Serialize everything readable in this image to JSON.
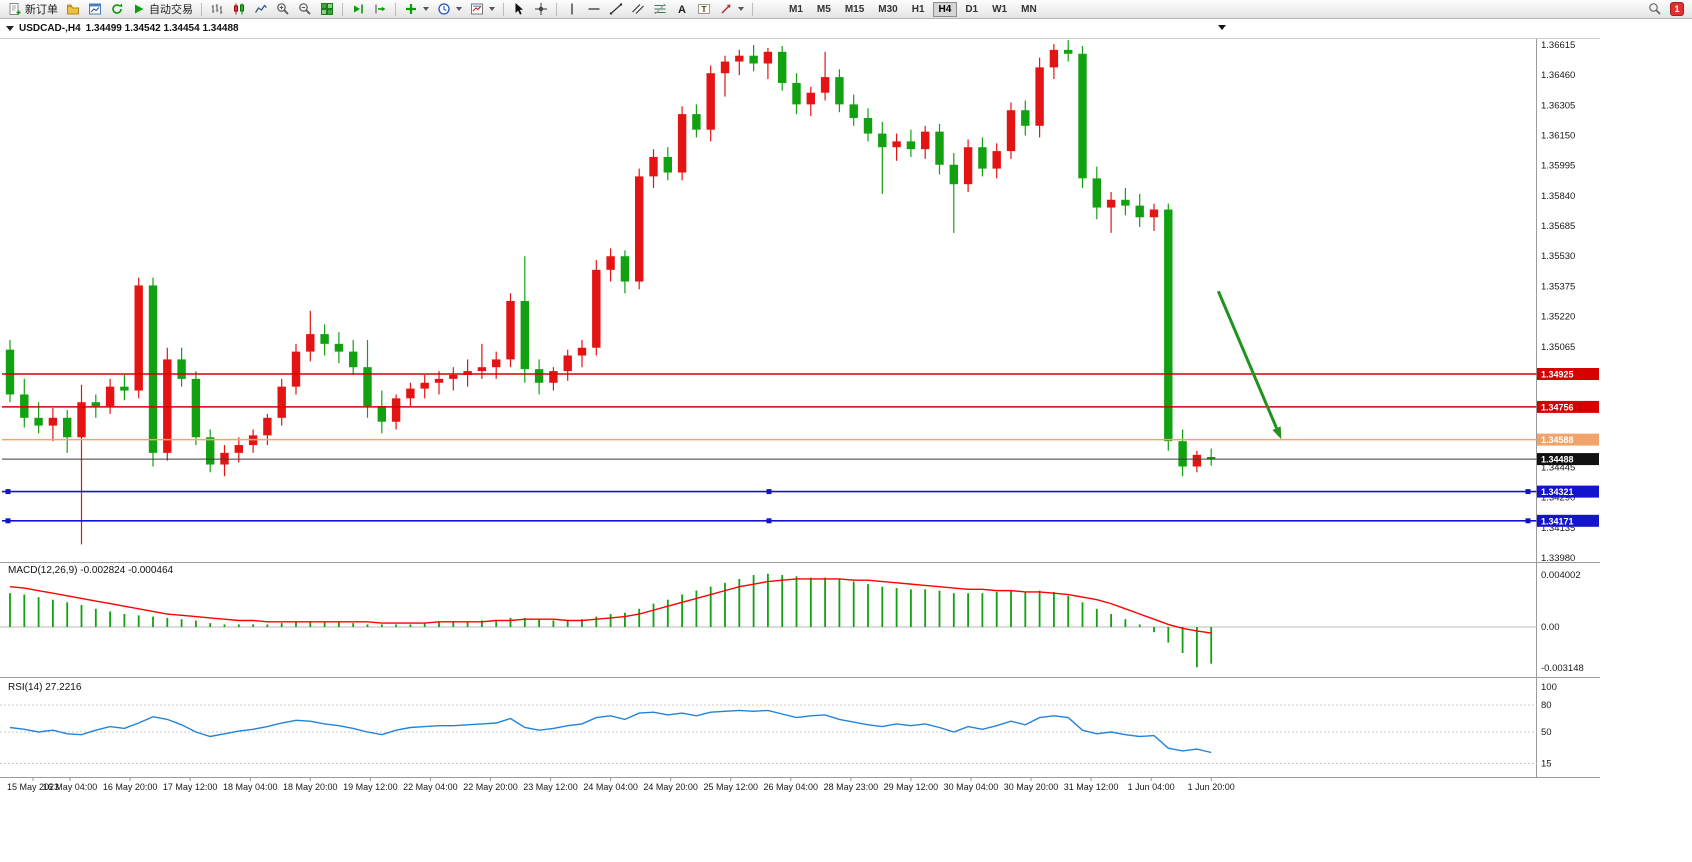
{
  "toolbar": {
    "new_order_label": "新订单",
    "autotrading_label": "自动交易",
    "timeframes": [
      "M1",
      "M5",
      "M15",
      "M30",
      "H1",
      "H4",
      "D1",
      "W1",
      "MN"
    ],
    "active_timeframe": "H4",
    "notification_badge": "1",
    "icon_names": [
      "new-order-icon",
      "profiles-icon",
      "chart-window-icon",
      "refresh-icon",
      "autotrading-icon",
      "bar-chart-icon",
      "candlestick-chart-icon",
      "line-chart-icon",
      "zoom-in-icon",
      "zoom-out-icon",
      "tile-windows-icon",
      "auto-scroll-icon",
      "chart-shift-icon",
      "indicators-icon",
      "periods-icon",
      "templates-icon",
      "cursor-icon",
      "crosshair-icon",
      "vertical-line-icon",
      "horizontal-line-icon",
      "trendline-icon",
      "channel-icon",
      "fibonacci-icon",
      "text-icon",
      "label-icon",
      "arrows-icon",
      "search-icon"
    ]
  },
  "chart_header": {
    "symbol_period": "USDCAD-,H4",
    "ohlc": "1.34499 1.34542 1.34454 1.34488"
  },
  "colors": {
    "bull": "#e41414",
    "bear": "#11a111",
    "macd_histogram": "#11a111",
    "macd_signal": "#ff0000",
    "rsi_line": "#2383d8",
    "grid": "#9b9b9b"
  },
  "chart_data": {
    "type": "candlestick",
    "symbol": "USDCAD",
    "period": "H4",
    "price_range": [
      1.3398,
      1.36615
    ],
    "price_axis_ticks": [
      "1.36615",
      "1.36460",
      "1.36305",
      "1.36150",
      "1.35995",
      "1.35840",
      "1.35685",
      "1.35530",
      "1.35375",
      "1.35220",
      "1.35065",
      "1.34910",
      "1.34755",
      "1.34600",
      "1.34445",
      "1.34290",
      "1.34135",
      "1.33980"
    ],
    "time_axis_labels": [
      "15 May 2023",
      "16 May 04:00",
      "16 May 20:00",
      "17 May 12:00",
      "18 May 04:00",
      "18 May 20:00",
      "19 May 12:00",
      "22 May 04:00",
      "22 May 20:00",
      "23 May 12:00",
      "24 May 04:00",
      "24 May 20:00",
      "25 May 12:00",
      "26 May 04:00",
      "28 May 23:00",
      "29 May 12:00",
      "30 May 04:00",
      "30 May 20:00",
      "31 May 12:00",
      "1 Jun 04:00",
      "1 Jun 20:00"
    ],
    "bars_ohlc": [
      [
        1.3505,
        1.351,
        1.3478,
        1.3482
      ],
      [
        1.3482,
        1.349,
        1.3465,
        1.347
      ],
      [
        1.347,
        1.3478,
        1.3462,
        1.3466
      ],
      [
        1.3466,
        1.3475,
        1.3458,
        1.347
      ],
      [
        1.347,
        1.3474,
        1.3452,
        1.346
      ],
      [
        1.346,
        1.3487,
        1.3405,
        1.3478
      ],
      [
        1.3478,
        1.3482,
        1.347,
        1.3476
      ],
      [
        1.3476,
        1.349,
        1.3472,
        1.3486
      ],
      [
        1.3486,
        1.3492,
        1.3479,
        1.3484
      ],
      [
        1.3484,
        1.3542,
        1.348,
        1.3538
      ],
      [
        1.3538,
        1.3542,
        1.3445,
        1.3452
      ],
      [
        1.3452,
        1.3506,
        1.3448,
        1.35
      ],
      [
        1.35,
        1.3506,
        1.3486,
        1.349
      ],
      [
        1.349,
        1.3494,
        1.3456,
        1.346
      ],
      [
        1.346,
        1.3464,
        1.3442,
        1.3446
      ],
      [
        1.3446,
        1.3456,
        1.344,
        1.3452
      ],
      [
        1.3452,
        1.346,
        1.3447,
        1.3456
      ],
      [
        1.3456,
        1.3464,
        1.3452,
        1.3461
      ],
      [
        1.3461,
        1.3472,
        1.3456,
        1.347
      ],
      [
        1.347,
        1.349,
        1.3466,
        1.3486
      ],
      [
        1.3486,
        1.3508,
        1.3482,
        1.3504
      ],
      [
        1.3504,
        1.3525,
        1.3499,
        1.3513
      ],
      [
        1.3513,
        1.3518,
        1.3502,
        1.3508
      ],
      [
        1.3508,
        1.3514,
        1.3498,
        1.3504
      ],
      [
        1.3504,
        1.351,
        1.3492,
        1.3496
      ],
      [
        1.3496,
        1.351,
        1.347,
        1.3476
      ],
      [
        1.3476,
        1.3484,
        1.3462,
        1.3468
      ],
      [
        1.3468,
        1.3482,
        1.3464,
        1.348
      ],
      [
        1.348,
        1.3488,
        1.3476,
        1.3485
      ],
      [
        1.3485,
        1.3492,
        1.348,
        1.3488
      ],
      [
        1.3488,
        1.3494,
        1.3482,
        1.349
      ],
      [
        1.349,
        1.3496,
        1.3484,
        1.3492
      ],
      [
        1.3492,
        1.35,
        1.3486,
        1.3494
      ],
      [
        1.3494,
        1.3508,
        1.349,
        1.3496
      ],
      [
        1.3496,
        1.3504,
        1.349,
        1.35
      ],
      [
        1.35,
        1.3534,
        1.3496,
        1.353
      ],
      [
        1.353,
        1.3553,
        1.3488,
        1.3495
      ],
      [
        1.3495,
        1.35,
        1.3482,
        1.3488
      ],
      [
        1.3488,
        1.3496,
        1.3484,
        1.3494
      ],
      [
        1.3494,
        1.3505,
        1.3489,
        1.3502
      ],
      [
        1.3502,
        1.351,
        1.3496,
        1.3506
      ],
      [
        1.3506,
        1.3551,
        1.3502,
        1.3546
      ],
      [
        1.3546,
        1.3557,
        1.354,
        1.3553
      ],
      [
        1.3553,
        1.3556,
        1.3534,
        1.354
      ],
      [
        1.354,
        1.3598,
        1.3536,
        1.3594
      ],
      [
        1.3594,
        1.3608,
        1.3588,
        1.3604
      ],
      [
        1.3604,
        1.3609,
        1.3592,
        1.3596
      ],
      [
        1.3596,
        1.363,
        1.3592,
        1.3626
      ],
      [
        1.3626,
        1.3631,
        1.3614,
        1.3618
      ],
      [
        1.3618,
        1.3651,
        1.3612,
        1.3647
      ],
      [
        1.3647,
        1.3656,
        1.3635,
        1.3653
      ],
      [
        1.3653,
        1.3659,
        1.3646,
        1.3656
      ],
      [
        1.3656,
        1.36615,
        1.3648,
        1.3652
      ],
      [
        1.3652,
        1.366,
        1.3644,
        1.3658
      ],
      [
        1.3658,
        1.3661,
        1.3638,
        1.3642
      ],
      [
        1.3642,
        1.3647,
        1.3626,
        1.3631
      ],
      [
        1.3631,
        1.364,
        1.3625,
        1.3637
      ],
      [
        1.3637,
        1.3658,
        1.3633,
        1.3645
      ],
      [
        1.3645,
        1.3649,
        1.3627,
        1.3631
      ],
      [
        1.3631,
        1.3636,
        1.362,
        1.3624
      ],
      [
        1.3624,
        1.3629,
        1.3612,
        1.3616
      ],
      [
        1.3616,
        1.3622,
        1.3585,
        1.3609
      ],
      [
        1.3609,
        1.3616,
        1.3602,
        1.3612
      ],
      [
        1.3612,
        1.3618,
        1.3604,
        1.3608
      ],
      [
        1.3608,
        1.362,
        1.3603,
        1.3617
      ],
      [
        1.3617,
        1.3621,
        1.3595,
        1.36
      ],
      [
        1.36,
        1.3606,
        1.3565,
        1.359
      ],
      [
        1.359,
        1.3613,
        1.3586,
        1.3609
      ],
      [
        1.3609,
        1.3614,
        1.3594,
        1.3598
      ],
      [
        1.3598,
        1.3611,
        1.3593,
        1.3607
      ],
      [
        1.3607,
        1.3632,
        1.3603,
        1.3628
      ],
      [
        1.3628,
        1.3633,
        1.3615,
        1.362
      ],
      [
        1.362,
        1.3655,
        1.3614,
        1.365
      ],
      [
        1.365,
        1.3662,
        1.3644,
        1.3659
      ],
      [
        1.3659,
        1.3664,
        1.3653,
        1.3657
      ],
      [
        1.3657,
        1.3661,
        1.3588,
        1.3593
      ],
      [
        1.3593,
        1.3599,
        1.3572,
        1.3578
      ],
      [
        1.3578,
        1.3586,
        1.3565,
        1.3582
      ],
      [
        1.3582,
        1.3588,
        1.3574,
        1.3579
      ],
      [
        1.3579,
        1.3585,
        1.3568,
        1.3573
      ],
      [
        1.3573,
        1.358,
        1.3566,
        1.3577
      ],
      [
        1.3577,
        1.358,
        1.3453,
        1.3458
      ],
      [
        1.3458,
        1.3464,
        1.344,
        1.3445
      ],
      [
        1.3445,
        1.3453,
        1.3442,
        1.3451
      ],
      [
        1.34499,
        1.34542,
        1.34454,
        1.34488
      ]
    ],
    "price_lines": [
      {
        "label": "1.34925",
        "price": 1.34925,
        "color": "#d60000",
        "width": 1.5
      },
      {
        "label": "1.34756",
        "price": 1.34756,
        "color": "#d60000",
        "width": 1.5
      },
      {
        "label": "1.34588",
        "price": 1.34588,
        "color": "#f2a36a",
        "width": 1.6
      },
      {
        "label": "1.34488",
        "price": 1.34488,
        "color": "#3a3a3a",
        "width": 1,
        "tag_color": "#111111",
        "type": "bid-line"
      },
      {
        "label": "1.34321",
        "price": 1.34321,
        "color": "#1414cc",
        "width": 1.6,
        "handles": true
      },
      {
        "label": "1.34171",
        "price": 1.34171,
        "color": "#1414cc",
        "width": 1.6,
        "handles": true
      }
    ],
    "trend_arrow": {
      "from_bar": 84.5,
      "from_price": 1.3535,
      "to_bar": 88.9,
      "to_price": 1.3459,
      "color": "#1f9220"
    },
    "indicators": [
      {
        "name": "MACD",
        "label": "MACD(12,26,9)",
        "current_values": "-0.002824 -0.000464",
        "axis_labels": [
          "0.004002",
          "0.00",
          "-0.003148"
        ],
        "histogram": [
          0.0026,
          0.0025,
          0.0023,
          0.0021,
          0.0019,
          0.0017,
          0.0014,
          0.0012,
          0.001,
          0.0009,
          0.0008,
          0.0007,
          0.0006,
          0.0005,
          0.0003,
          0.0002,
          0.0002,
          0.0002,
          0.0002,
          0.0003,
          0.0004,
          0.0004,
          0.0004,
          0.0004,
          0.0003,
          0.0002,
          0.0002,
          0.0002,
          0.0002,
          0.0003,
          0.0004,
          0.0004,
          0.0004,
          0.0005,
          0.0005,
          0.0007,
          0.0007,
          0.0006,
          0.0005,
          0.0005,
          0.0006,
          0.0008,
          0.001,
          0.0011,
          0.0014,
          0.0018,
          0.0021,
          0.0025,
          0.0028,
          0.0031,
          0.0034,
          0.0037,
          0.004,
          0.0041,
          0.004,
          0.0039,
          0.0038,
          0.0038,
          0.0037,
          0.0035,
          0.0033,
          0.0031,
          0.003,
          0.0029,
          0.0029,
          0.0028,
          0.0026,
          0.0026,
          0.0026,
          0.0027,
          0.0028,
          0.0027,
          0.0028,
          0.0027,
          0.0024,
          0.0019,
          0.0014,
          0.001,
          0.0006,
          0.0002,
          -0.0004,
          -0.0012,
          -0.002,
          -0.0031,
          -0.002824
        ],
        "signal": [
          0.0031,
          0.003,
          0.0028,
          0.0026,
          0.0024,
          0.0022,
          0.002,
          0.0018,
          0.0016,
          0.0014,
          0.0012,
          0.001,
          0.0009,
          0.0008,
          0.0007,
          0.0006,
          0.0005,
          0.0005,
          0.0004,
          0.0004,
          0.0004,
          0.0004,
          0.0004,
          0.0004,
          0.0004,
          0.0004,
          0.0003,
          0.0003,
          0.0003,
          0.0003,
          0.0004,
          0.0004,
          0.0004,
          0.0004,
          0.0005,
          0.0005,
          0.0006,
          0.0006,
          0.0006,
          0.0005,
          0.0005,
          0.0006,
          0.0007,
          0.0008,
          0.001,
          0.0013,
          0.0016,
          0.0019,
          0.0022,
          0.0025,
          0.0028,
          0.0031,
          0.0033,
          0.0035,
          0.0036,
          0.0037,
          0.0037,
          0.0037,
          0.0037,
          0.0036,
          0.0036,
          0.0035,
          0.0034,
          0.0033,
          0.0032,
          0.0031,
          0.003,
          0.0029,
          0.0029,
          0.0028,
          0.0028,
          0.0027,
          0.0027,
          0.0026,
          0.0025,
          0.0023,
          0.0021,
          0.0018,
          0.0014,
          0.001,
          0.0006,
          0.0002,
          -0.0001,
          -0.0003,
          -0.000464
        ]
      },
      {
        "name": "RSI",
        "label": "RSI(14)",
        "current_value": "27.2216",
        "levels": [
          "100",
          "80",
          "50",
          "15"
        ],
        "values": [
          55,
          53,
          50,
          52,
          48,
          47,
          52,
          56,
          54,
          60,
          67,
          64,
          58,
          50,
          45,
          48,
          51,
          53,
          56,
          60,
          63,
          62,
          59,
          57,
          54,
          50,
          47,
          52,
          55,
          56,
          57,
          57,
          58,
          59,
          60,
          65,
          55,
          52,
          54,
          57,
          59,
          66,
          68,
          64,
          71,
          72,
          69,
          71,
          68,
          72,
          73,
          74,
          73,
          74,
          70,
          66,
          68,
          69,
          64,
          61,
          58,
          56,
          59,
          57,
          59,
          55,
          50,
          56,
          53,
          57,
          62,
          58,
          66,
          68,
          66,
          52,
          48,
          50,
          47,
          45,
          46,
          32,
          29,
          31,
          27.2216
        ]
      }
    ]
  }
}
